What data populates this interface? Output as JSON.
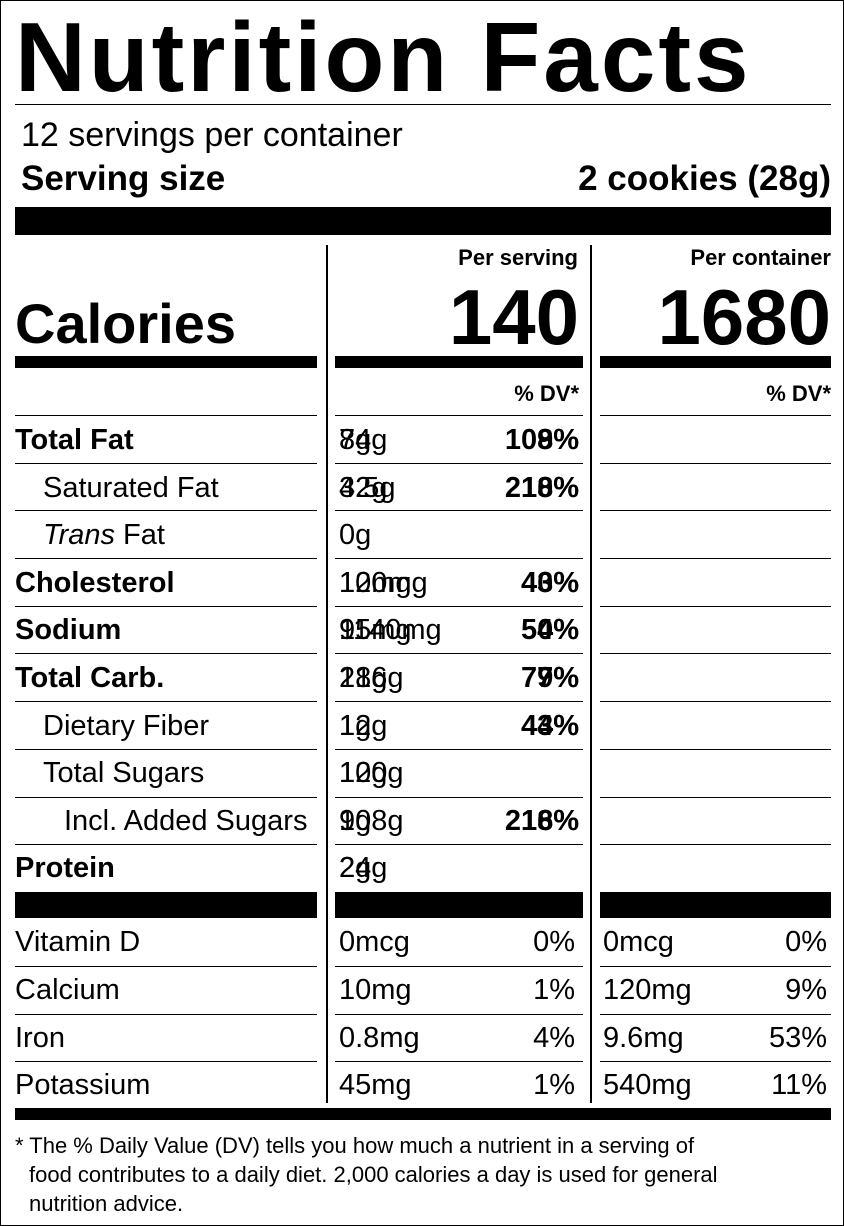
{
  "title": "Nutrition Facts",
  "servings_per_container": "12 servings per container",
  "serving_size_label": "Serving size",
  "serving_size_value": "2 cookies (28g)",
  "columns": {
    "per_serving": "Per serving",
    "per_container": "Per container",
    "dv_header": "% DV*"
  },
  "calories": {
    "label": "Calories",
    "per_serving": "140",
    "per_container": "1680"
  },
  "nutrients": [
    {
      "name": "Total Fat",
      "style": "bold",
      "serving_amount_a": "7g",
      "serving_amount_b": "84g",
      "serving_dv_a": "9%",
      "serving_dv_b": "108%"
    },
    {
      "name": "Saturated Fat",
      "style": "indent",
      "serving_amount_a": "3.5g",
      "serving_amount_b": "42g",
      "serving_dv_a": "18%",
      "serving_dv_b": "210%"
    },
    {
      "name_italic": "Trans",
      "name_rest": " Fat",
      "style": "indent",
      "serving_amount_a": "0g"
    },
    {
      "name": "Cholesterol",
      "style": "bold",
      "serving_amount_a": "10mg",
      "serving_amount_b": "120mg",
      "serving_dv_a": "3%",
      "serving_dv_b": "40%"
    },
    {
      "name": "Sodium",
      "style": "bold",
      "serving_amount_a": "95mg",
      "serving_amount_b": "1140mg",
      "serving_dv_a": "4%",
      "serving_dv_b": "50%"
    },
    {
      "name": "Total Carb.",
      "style": "bold",
      "serving_amount_a": "18g",
      "serving_amount_b": "216g",
      "serving_dv_a": "7%",
      "serving_dv_b": "79%"
    },
    {
      "name": "Dietary Fiber",
      "style": "indent",
      "serving_amount_a": "1g",
      "serving_amount_b": "12g",
      "serving_dv_a": "4%",
      "serving_dv_b": "43%"
    },
    {
      "name": "Total Sugars",
      "style": "indent",
      "serving_amount_a": "10g",
      "serving_amount_b": "120g"
    },
    {
      "name": "Incl. Added Sugars",
      "style": "indent2",
      "serving_amount_a": "9g",
      "serving_amount_b": "108g",
      "serving_dv_a": "18%",
      "serving_dv_b": "216%"
    },
    {
      "name": "Protein",
      "style": "bold",
      "serving_amount_a": "2g",
      "serving_amount_b": "24g"
    }
  ],
  "vitamins": [
    {
      "name": "Vitamin D",
      "serving_amount": "0mcg",
      "serving_dv": "0%",
      "container_amount": "0mcg",
      "container_dv": "0%"
    },
    {
      "name": "Calcium",
      "serving_amount": "10mg",
      "serving_dv": "1%",
      "container_amount": "120mg",
      "container_dv": "9%"
    },
    {
      "name": "Iron",
      "serving_amount": "0.8mg",
      "serving_dv": "4%",
      "container_amount": "9.6mg",
      "container_dv": "53%"
    },
    {
      "name": "Potassium",
      "serving_amount": "45mg",
      "serving_dv": "1%",
      "container_amount": "540mg",
      "container_dv": "11%"
    }
  ],
  "footnote": {
    "line1": "* The % Daily Value (DV) tells you how much a nutrient in a serving of",
    "line2": "food contributes to a daily diet. 2,000 calories a day is used for general",
    "line3": "nutrition advice."
  }
}
